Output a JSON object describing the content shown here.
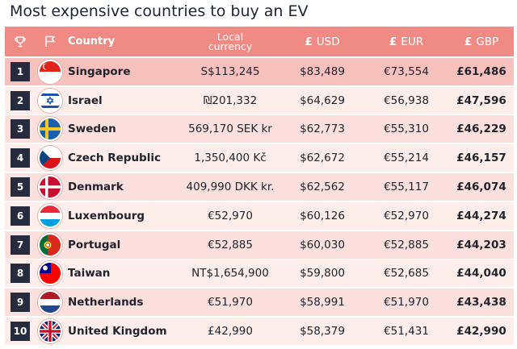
{
  "title": "Most expensive countries to buy an EV",
  "header": {
    "trophy_icon": "trophy-icon",
    "flag_icon": "flag-outline-icon",
    "country": "Country",
    "local_line1": "Local",
    "local_line2": "currency",
    "usd_symbol": "£",
    "usd": "USD",
    "eur_symbol": "£",
    "eur": "EUR",
    "gbp_symbol": "£",
    "gbp": "GBP"
  },
  "rows": [
    {
      "rank": "1",
      "country": "Singapore",
      "flag": "singapore",
      "local": "S$113,245",
      "usd": "$83,489",
      "eur": "€73,554",
      "gbp": "£61,486"
    },
    {
      "rank": "2",
      "country": "Israel",
      "flag": "israel",
      "local": "₪201,332",
      "usd": "$64,629",
      "eur": "€56,938",
      "gbp": "£47,596"
    },
    {
      "rank": "3",
      "country": "Sweden",
      "flag": "sweden",
      "local": "569,170 SEK kr",
      "usd": "$62,773",
      "eur": "€55,310",
      "gbp": "£46,229"
    },
    {
      "rank": "4",
      "country": "Czech Republic",
      "flag": "czech",
      "local": "1,350,400 Kč",
      "usd": "$62,672",
      "eur": "€55,214",
      "gbp": "£46,157"
    },
    {
      "rank": "5",
      "country": "Denmark",
      "flag": "denmark",
      "local": "409,990 DKK kr.",
      "usd": "$62,562",
      "eur": "€55,117",
      "gbp": "£46,074"
    },
    {
      "rank": "6",
      "country": "Luxembourg",
      "flag": "luxembourg",
      "local": "€52,970",
      "usd": "$60,126",
      "eur": "€52,970",
      "gbp": "£44,274"
    },
    {
      "rank": "7",
      "country": "Portugal",
      "flag": "portugal",
      "local": "€52,885",
      "usd": "$60,030",
      "eur": "€52,885",
      "gbp": "£44,203"
    },
    {
      "rank": "8",
      "country": "Taiwan",
      "flag": "taiwan",
      "local": "NT$1,654,900",
      "usd": "$59,800",
      "eur": "€52,685",
      "gbp": "£44,040"
    },
    {
      "rank": "9",
      "country": "Netherlands",
      "flag": "netherlands",
      "local": "€51,970",
      "usd": "$58,991",
      "eur": "€51,970",
      "gbp": "£43,438"
    },
    {
      "rank": "10",
      "country": "United Kingdom",
      "flag": "uk",
      "local": "£42,990",
      "usd": "$58,379",
      "eur": "€51,431",
      "gbp": "£42,990"
    }
  ]
}
